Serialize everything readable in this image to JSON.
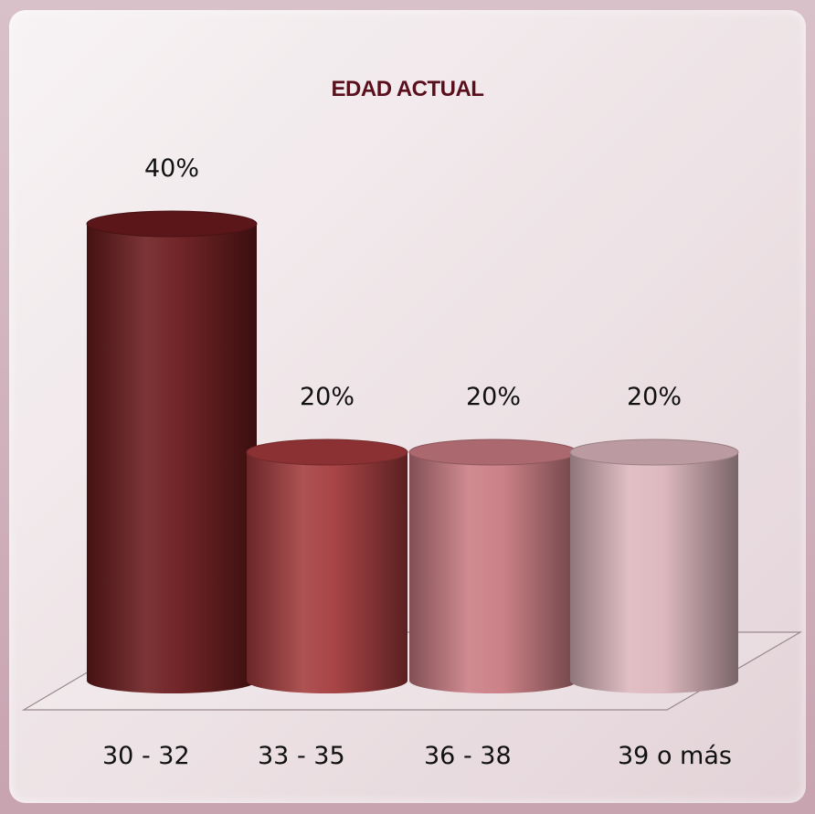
{
  "chart_data": {
    "type": "bar",
    "title": "EDAD ACTUAL",
    "categories": [
      "30 - 32",
      "33 - 35",
      "36 - 38",
      "39 o más"
    ],
    "values": [
      40,
      20,
      20,
      20
    ],
    "data_labels": [
      "40%",
      "20%",
      "20%",
      "20%"
    ],
    "bar_colors": [
      "#6a1a1c",
      "#a33a3c",
      "#c97b82",
      "#dcb6bd"
    ],
    "ylim": [
      0,
      40
    ],
    "bar_shape": "cylinder",
    "grid": false,
    "legend": "none"
  }
}
